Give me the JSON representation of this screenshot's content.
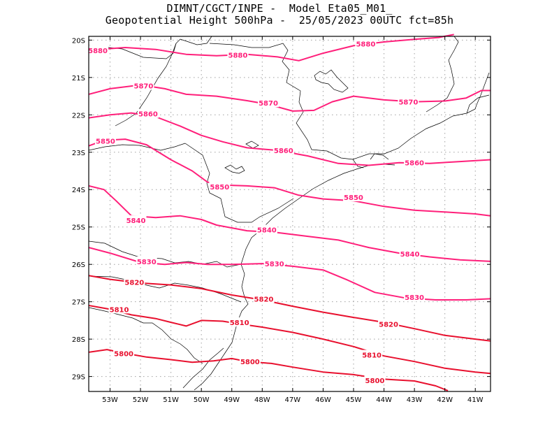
{
  "title": {
    "line1": "DIMNT/CGCT/INPE -  Model Eta05_M01_",
    "line2": "Geopotential Height 500hPa -  25/05/2023 00UTC fct=85h"
  },
  "map": {
    "lon_range": [
      -53.7,
      -40.5
    ],
    "lat_range": [
      -29.4,
      -19.9
    ],
    "lat_ticks": [
      {
        "lat": -20,
        "label": "20S"
      },
      {
        "lat": -21,
        "label": "21S"
      },
      {
        "lat": -22,
        "label": "22S"
      },
      {
        "lat": -23,
        "label": "23S"
      },
      {
        "lat": -24,
        "label": "24S"
      },
      {
        "lat": -25,
        "label": "25S"
      },
      {
        "lat": -26,
        "label": "26S"
      },
      {
        "lat": -27,
        "label": "27S"
      },
      {
        "lat": -28,
        "label": "28S"
      },
      {
        "lat": -29,
        "label": "29S"
      }
    ],
    "lon_ticks": [
      {
        "lon": -53,
        "label": "53W"
      },
      {
        "lon": -52,
        "label": "52W"
      },
      {
        "lon": -51,
        "label": "51W"
      },
      {
        "lon": -50,
        "label": "50W"
      },
      {
        "lon": -49,
        "label": "49W"
      },
      {
        "lon": -48,
        "label": "48W"
      },
      {
        "lon": -47,
        "label": "47W"
      },
      {
        "lon": -46,
        "label": "46W"
      },
      {
        "lon": -45,
        "label": "45W"
      },
      {
        "lon": -44,
        "label": "44W"
      },
      {
        "lon": -43,
        "label": "43W"
      },
      {
        "lon": -42,
        "label": "42W"
      },
      {
        "lon": -41,
        "label": "41W"
      }
    ],
    "grid": true,
    "grid_style": "dotted"
  },
  "contours": [
    {
      "value": "5880",
      "color": "#ff1f7a",
      "points": [
        [
          -53.7,
          -20.27
        ],
        [
          -52.5,
          -20.2
        ],
        [
          -51.5,
          -20.25
        ],
        [
          -50.5,
          -20.38
        ],
        [
          -49.5,
          -20.42
        ],
        [
          -48.5,
          -20.38
        ],
        [
          -47.5,
          -20.45
        ],
        [
          -46.8,
          -20.55
        ],
        [
          -46,
          -20.35
        ],
        [
          -45,
          -20.15
        ],
        [
          -44,
          -20.05
        ],
        [
          -43,
          -19.98
        ],
        [
          -42.2,
          -19.93
        ],
        [
          -41.7,
          -19.85
        ]
      ],
      "labels": [
        [
          -53.4,
          -20.27
        ],
        [
          -48.8,
          -20.4
        ],
        [
          -44.6,
          -20.1
        ]
      ]
    },
    {
      "value": "5870",
      "color": "#ff1f7a",
      "points": [
        [
          -53.7,
          -21.45
        ],
        [
          -53,
          -21.3
        ],
        [
          -52,
          -21.2
        ],
        [
          -51.2,
          -21.3
        ],
        [
          -50.5,
          -21.45
        ],
        [
          -49.5,
          -21.5
        ],
        [
          -48.5,
          -21.62
        ],
        [
          -47.8,
          -21.72
        ],
        [
          -47,
          -21.9
        ],
        [
          -46.3,
          -21.88
        ],
        [
          -45.7,
          -21.65
        ],
        [
          -45,
          -21.5
        ],
        [
          -44,
          -21.6
        ],
        [
          -43,
          -21.65
        ],
        [
          -42,
          -21.63
        ],
        [
          -41.3,
          -21.55
        ],
        [
          -40.8,
          -21.35
        ],
        [
          -40.5,
          -21.35
        ]
      ],
      "labels": [
        [
          -51.9,
          -21.22
        ],
        [
          -47.8,
          -21.68
        ],
        [
          -43.2,
          -21.65
        ]
      ]
    },
    {
      "value": "5860",
      "color": "#ff1f7a",
      "points": [
        [
          -53.7,
          -22.08
        ],
        [
          -53,
          -22.0
        ],
        [
          -52.3,
          -21.95
        ],
        [
          -51.5,
          -22.05
        ],
        [
          -50.7,
          -22.3
        ],
        [
          -50,
          -22.55
        ],
        [
          -49.3,
          -22.72
        ],
        [
          -48.5,
          -22.88
        ],
        [
          -47.5,
          -22.95
        ],
        [
          -46.5,
          -23.1
        ],
        [
          -45.5,
          -23.3
        ],
        [
          -44.5,
          -23.35
        ],
        [
          -43.5,
          -23.28
        ],
        [
          -42.5,
          -23.3
        ],
        [
          -41.5,
          -23.25
        ],
        [
          -40.5,
          -23.2
        ]
      ],
      "labels": [
        [
          -51.75,
          -21.97
        ],
        [
          -47.3,
          -22.95
        ],
        [
          -43.0,
          -23.28
        ]
      ]
    },
    {
      "value": "5850",
      "color": "#ff1f7a",
      "points": [
        [
          -53.7,
          -22.83
        ],
        [
          -53.2,
          -22.68
        ],
        [
          -52.5,
          -22.65
        ],
        [
          -51.8,
          -22.8
        ],
        [
          -51,
          -23.2
        ],
        [
          -50.3,
          -23.5
        ],
        [
          -49.8,
          -23.8
        ],
        [
          -49.3,
          -23.88
        ],
        [
          -48.5,
          -23.9
        ],
        [
          -47.6,
          -23.95
        ],
        [
          -46.8,
          -24.15
        ],
        [
          -46,
          -24.25
        ],
        [
          -45,
          -24.3
        ],
        [
          -44,
          -24.45
        ],
        [
          -43,
          -24.55
        ],
        [
          -42,
          -24.6
        ],
        [
          -41,
          -24.65
        ],
        [
          -40.5,
          -24.7
        ]
      ],
      "labels": [
        [
          -53.15,
          -22.7
        ],
        [
          -49.4,
          -23.92
        ],
        [
          -45.0,
          -24.2
        ]
      ]
    },
    {
      "value": "5840",
      "color": "#ff1f7a",
      "points": [
        [
          -53.7,
          -23.9
        ],
        [
          -53.2,
          -24.0
        ],
        [
          -52.8,
          -24.3
        ],
        [
          -52.3,
          -24.7
        ],
        [
          -51.5,
          -24.75
        ],
        [
          -50.7,
          -24.7
        ],
        [
          -50,
          -24.8
        ],
        [
          -49.5,
          -24.95
        ],
        [
          -48.5,
          -25.1
        ],
        [
          -47.5,
          -25.15
        ],
        [
          -46.5,
          -25.25
        ],
        [
          -45.5,
          -25.35
        ],
        [
          -44.5,
          -25.55
        ],
        [
          -43.5,
          -25.7
        ],
        [
          -42.5,
          -25.8
        ],
        [
          -41.5,
          -25.88
        ],
        [
          -40.5,
          -25.92
        ]
      ],
      "labels": [
        [
          -52.15,
          -24.82
        ],
        [
          -47.85,
          -25.07
        ],
        [
          -43.15,
          -25.72
        ]
      ]
    },
    {
      "value": "5830",
      "color": "#ff1f7a",
      "points": [
        [
          -53.7,
          -25.55
        ],
        [
          -53,
          -25.7
        ],
        [
          -52,
          -25.95
        ],
        [
          -51.2,
          -26.0
        ],
        [
          -50.5,
          -25.95
        ],
        [
          -49.8,
          -26.0
        ],
        [
          -49,
          -26.0
        ],
        [
          -48,
          -25.98
        ],
        [
          -47,
          -26.05
        ],
        [
          -46,
          -26.15
        ],
        [
          -45.2,
          -26.42
        ],
        [
          -44.3,
          -26.75
        ],
        [
          -43.3,
          -26.9
        ],
        [
          -42.3,
          -26.95
        ],
        [
          -41.3,
          -26.95
        ],
        [
          -40.5,
          -26.92
        ]
      ],
      "labels": [
        [
          -51.8,
          -25.92
        ],
        [
          -47.6,
          -25.98
        ],
        [
          -43.0,
          -26.88
        ]
      ]
    },
    {
      "value": "5820",
      "color": "#e8102e",
      "points": [
        [
          -53.7,
          -26.3
        ],
        [
          -53,
          -26.4
        ],
        [
          -52,
          -26.5
        ],
        [
          -51,
          -26.55
        ],
        [
          -50,
          -26.65
        ],
        [
          -49,
          -26.82
        ],
        [
          -48,
          -26.95
        ],
        [
          -47,
          -27.12
        ],
        [
          -46,
          -27.28
        ],
        [
          -45,
          -27.42
        ],
        [
          -44,
          -27.55
        ],
        [
          -43,
          -27.72
        ],
        [
          -42,
          -27.9
        ],
        [
          -41,
          -28.0
        ],
        [
          -40.5,
          -28.05
        ]
      ],
      "labels": [
        [
          -52.2,
          -26.47
        ],
        [
          -47.95,
          -26.92
        ],
        [
          -43.85,
          -27.6
        ]
      ]
    },
    {
      "value": "5810",
      "color": "#e8102e",
      "points": [
        [
          -53.7,
          -27.1
        ],
        [
          -53,
          -27.2
        ],
        [
          -52.3,
          -27.35
        ],
        [
          -51.5,
          -27.45
        ],
        [
          -51,
          -27.55
        ],
        [
          -50.5,
          -27.65
        ],
        [
          -50,
          -27.5
        ],
        [
          -49.3,
          -27.52
        ],
        [
          -48.7,
          -27.6
        ],
        [
          -48,
          -27.68
        ],
        [
          -47,
          -27.82
        ],
        [
          -46,
          -28.0
        ],
        [
          -45,
          -28.2
        ],
        [
          -44,
          -28.45
        ],
        [
          -43,
          -28.6
        ],
        [
          -42,
          -28.78
        ],
        [
          -41,
          -28.88
        ],
        [
          -40.5,
          -28.92
        ]
      ],
      "labels": [
        [
          -52.7,
          -27.2
        ],
        [
          -48.75,
          -27.55
        ],
        [
          -44.4,
          -28.42
        ]
      ]
    },
    {
      "value": "5800",
      "color": "#e8102e",
      "points": [
        [
          -53.7,
          -28.35
        ],
        [
          -53.1,
          -28.28
        ],
        [
          -52.5,
          -28.38
        ],
        [
          -51.8,
          -28.48
        ],
        [
          -51,
          -28.55
        ],
        [
          -50.3,
          -28.62
        ],
        [
          -49.6,
          -28.58
        ],
        [
          -49,
          -28.52
        ],
        [
          -48.5,
          -28.6
        ],
        [
          -47.7,
          -28.65
        ],
        [
          -47,
          -28.75
        ],
        [
          -46,
          -28.88
        ],
        [
          -45,
          -28.95
        ],
        [
          -44,
          -29.07
        ],
        [
          -43,
          -29.12
        ],
        [
          -42.3,
          -29.25
        ],
        [
          -41.9,
          -29.38
        ]
      ],
      "labels": [
        [
          -52.55,
          -28.38
        ],
        [
          -48.4,
          -28.6
        ],
        [
          -44.3,
          -29.1
        ]
      ]
    }
  ]
}
